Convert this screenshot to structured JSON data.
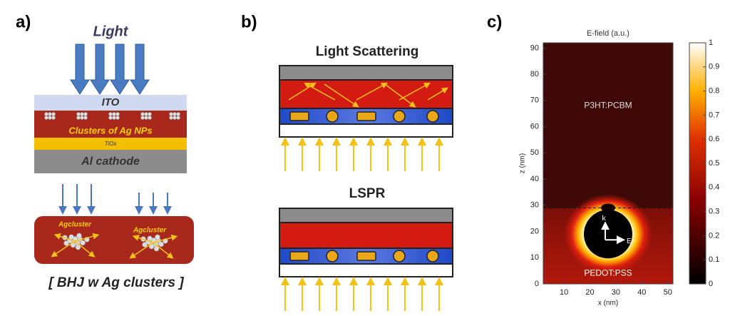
{
  "panels": [
    {
      "label": "a)",
      "light": "Light",
      "layers": [
        "ITO",
        "Clusters of Ag NPs",
        "TiOx",
        "Al cathode"
      ],
      "clusters": [
        "Agcluster",
        "Agcluster"
      ],
      "caption": "[ BHJ w Ag clusters ]"
    },
    {
      "label": "b)",
      "diagrams": [
        "Light Scattering",
        "LSPR"
      ]
    },
    {
      "label": "c)",
      "title": "E-field (a.u.)",
      "xlabel": "x (nm)",
      "ylabel": "z (nm)",
      "xlim": [
        2,
        52
      ],
      "xticks": [
        10,
        20,
        30,
        40,
        50
      ],
      "ylim": [
        0,
        92
      ],
      "yticks": [
        0,
        10,
        20,
        30,
        40,
        50,
        60,
        70,
        80,
        90
      ],
      "colorbar_lim": [
        0,
        1
      ],
      "colorbar_ticks": [
        0,
        0.1,
        0.2,
        0.3,
        0.4,
        0.5,
        0.6,
        0.7,
        0.8,
        0.9,
        1
      ],
      "regions": [
        "P3HT:PCBM",
        "PEDOT:PSS"
      ],
      "vectors": [
        "k",
        "E"
      ]
    }
  ]
}
